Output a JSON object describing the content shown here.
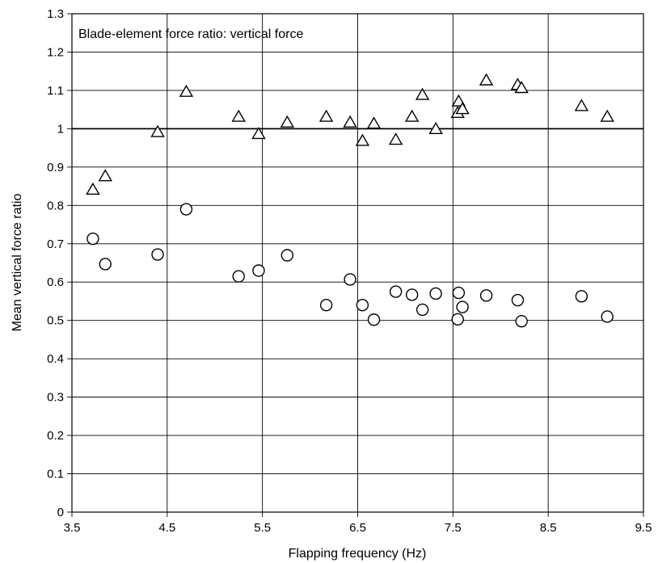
{
  "chart_data": {
    "type": "scatter",
    "title": "",
    "annotation": "Blade-element force ratio: vertical force",
    "xlabel": "Flapping frequency (Hz)",
    "ylabel": "Mean vertical force ratio",
    "xlim": [
      3.5,
      9.5
    ],
    "ylim": [
      0,
      1.3
    ],
    "x_ticks": [
      "3.5",
      "4.5",
      "5.5",
      "6.5",
      "7.5",
      "8.5",
      "9.5"
    ],
    "y_ticks": [
      "0",
      "0.1",
      "0.2",
      "0.3",
      "0.4",
      "0.5",
      "0.6",
      "0.7",
      "0.8",
      "0.9",
      "1",
      "1.1",
      "1.2",
      "1.3"
    ],
    "grid": true,
    "reference_line_y": 1,
    "series": [
      {
        "marker": "triangle",
        "points": [
          [
            3.72,
            0.84
          ],
          [
            3.85,
            0.875
          ],
          [
            4.4,
            0.99
          ],
          [
            4.7,
            1.095
          ],
          [
            5.25,
            1.03
          ],
          [
            5.46,
            0.985
          ],
          [
            5.76,
            1.015
          ],
          [
            6.17,
            1.03
          ],
          [
            6.42,
            1.015
          ],
          [
            6.55,
            0.967
          ],
          [
            6.67,
            1.012
          ],
          [
            6.9,
            0.97
          ],
          [
            7.07,
            1.03
          ],
          [
            7.18,
            1.087
          ],
          [
            7.32,
            0.998
          ],
          [
            7.55,
            1.04
          ],
          [
            7.56,
            1.07
          ],
          [
            7.6,
            1.05
          ],
          [
            7.85,
            1.125
          ],
          [
            8.18,
            1.113
          ],
          [
            8.22,
            1.105
          ],
          [
            8.85,
            1.058
          ],
          [
            9.12,
            1.03
          ]
        ]
      },
      {
        "marker": "circle",
        "points": [
          [
            3.72,
            0.713
          ],
          [
            3.85,
            0.647
          ],
          [
            4.4,
            0.672
          ],
          [
            4.7,
            0.79
          ],
          [
            5.25,
            0.615
          ],
          [
            5.46,
            0.63
          ],
          [
            5.76,
            0.67
          ],
          [
            6.17,
            0.54
          ],
          [
            6.42,
            0.607
          ],
          [
            6.55,
            0.54
          ],
          [
            6.67,
            0.502
          ],
          [
            6.9,
            0.575
          ],
          [
            7.07,
            0.567
          ],
          [
            7.18,
            0.528
          ],
          [
            7.32,
            0.57
          ],
          [
            7.55,
            0.503
          ],
          [
            7.56,
            0.572
          ],
          [
            7.6,
            0.535
          ],
          [
            7.85,
            0.565
          ],
          [
            8.18,
            0.553
          ],
          [
            8.22,
            0.498
          ],
          [
            8.85,
            0.563
          ],
          [
            9.12,
            0.51
          ]
        ]
      }
    ]
  }
}
